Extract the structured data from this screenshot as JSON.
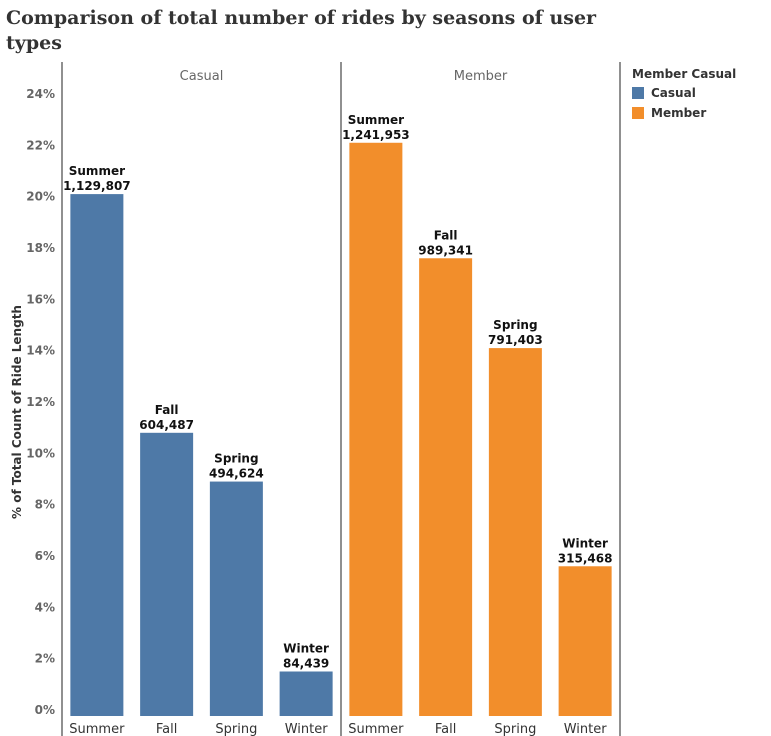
{
  "chart_data": {
    "type": "bar",
    "title": "Comparison of total number of rides by seasons of user types",
    "ylabel": "% of Total Count of Ride Length",
    "ylim": [
      0,
      24
    ],
    "yticks": [
      "0%",
      "2%",
      "4%",
      "6%",
      "8%",
      "10%",
      "12%",
      "14%",
      "16%",
      "18%",
      "20%",
      "22%",
      "24%"
    ],
    "categories": [
      "Summer",
      "Fall",
      "Spring",
      "Winter"
    ],
    "legend": {
      "title": "Member Casual",
      "placement": "top-right",
      "entries": [
        "Casual",
        "Member"
      ]
    },
    "series": [
      {
        "name": "Casual",
        "color": "#4e79a7",
        "values": [
          20.1,
          10.8,
          8.9,
          1.5
        ],
        "labels": [
          "1,129,807",
          "604,487",
          "494,624",
          "84,439"
        ]
      },
      {
        "name": "Member",
        "color": "#f28e2b",
        "values": [
          22.1,
          17.6,
          14.1,
          5.6
        ],
        "labels": [
          "1,241,953",
          "989,341",
          "791,403",
          "315,468"
        ]
      }
    ]
  }
}
